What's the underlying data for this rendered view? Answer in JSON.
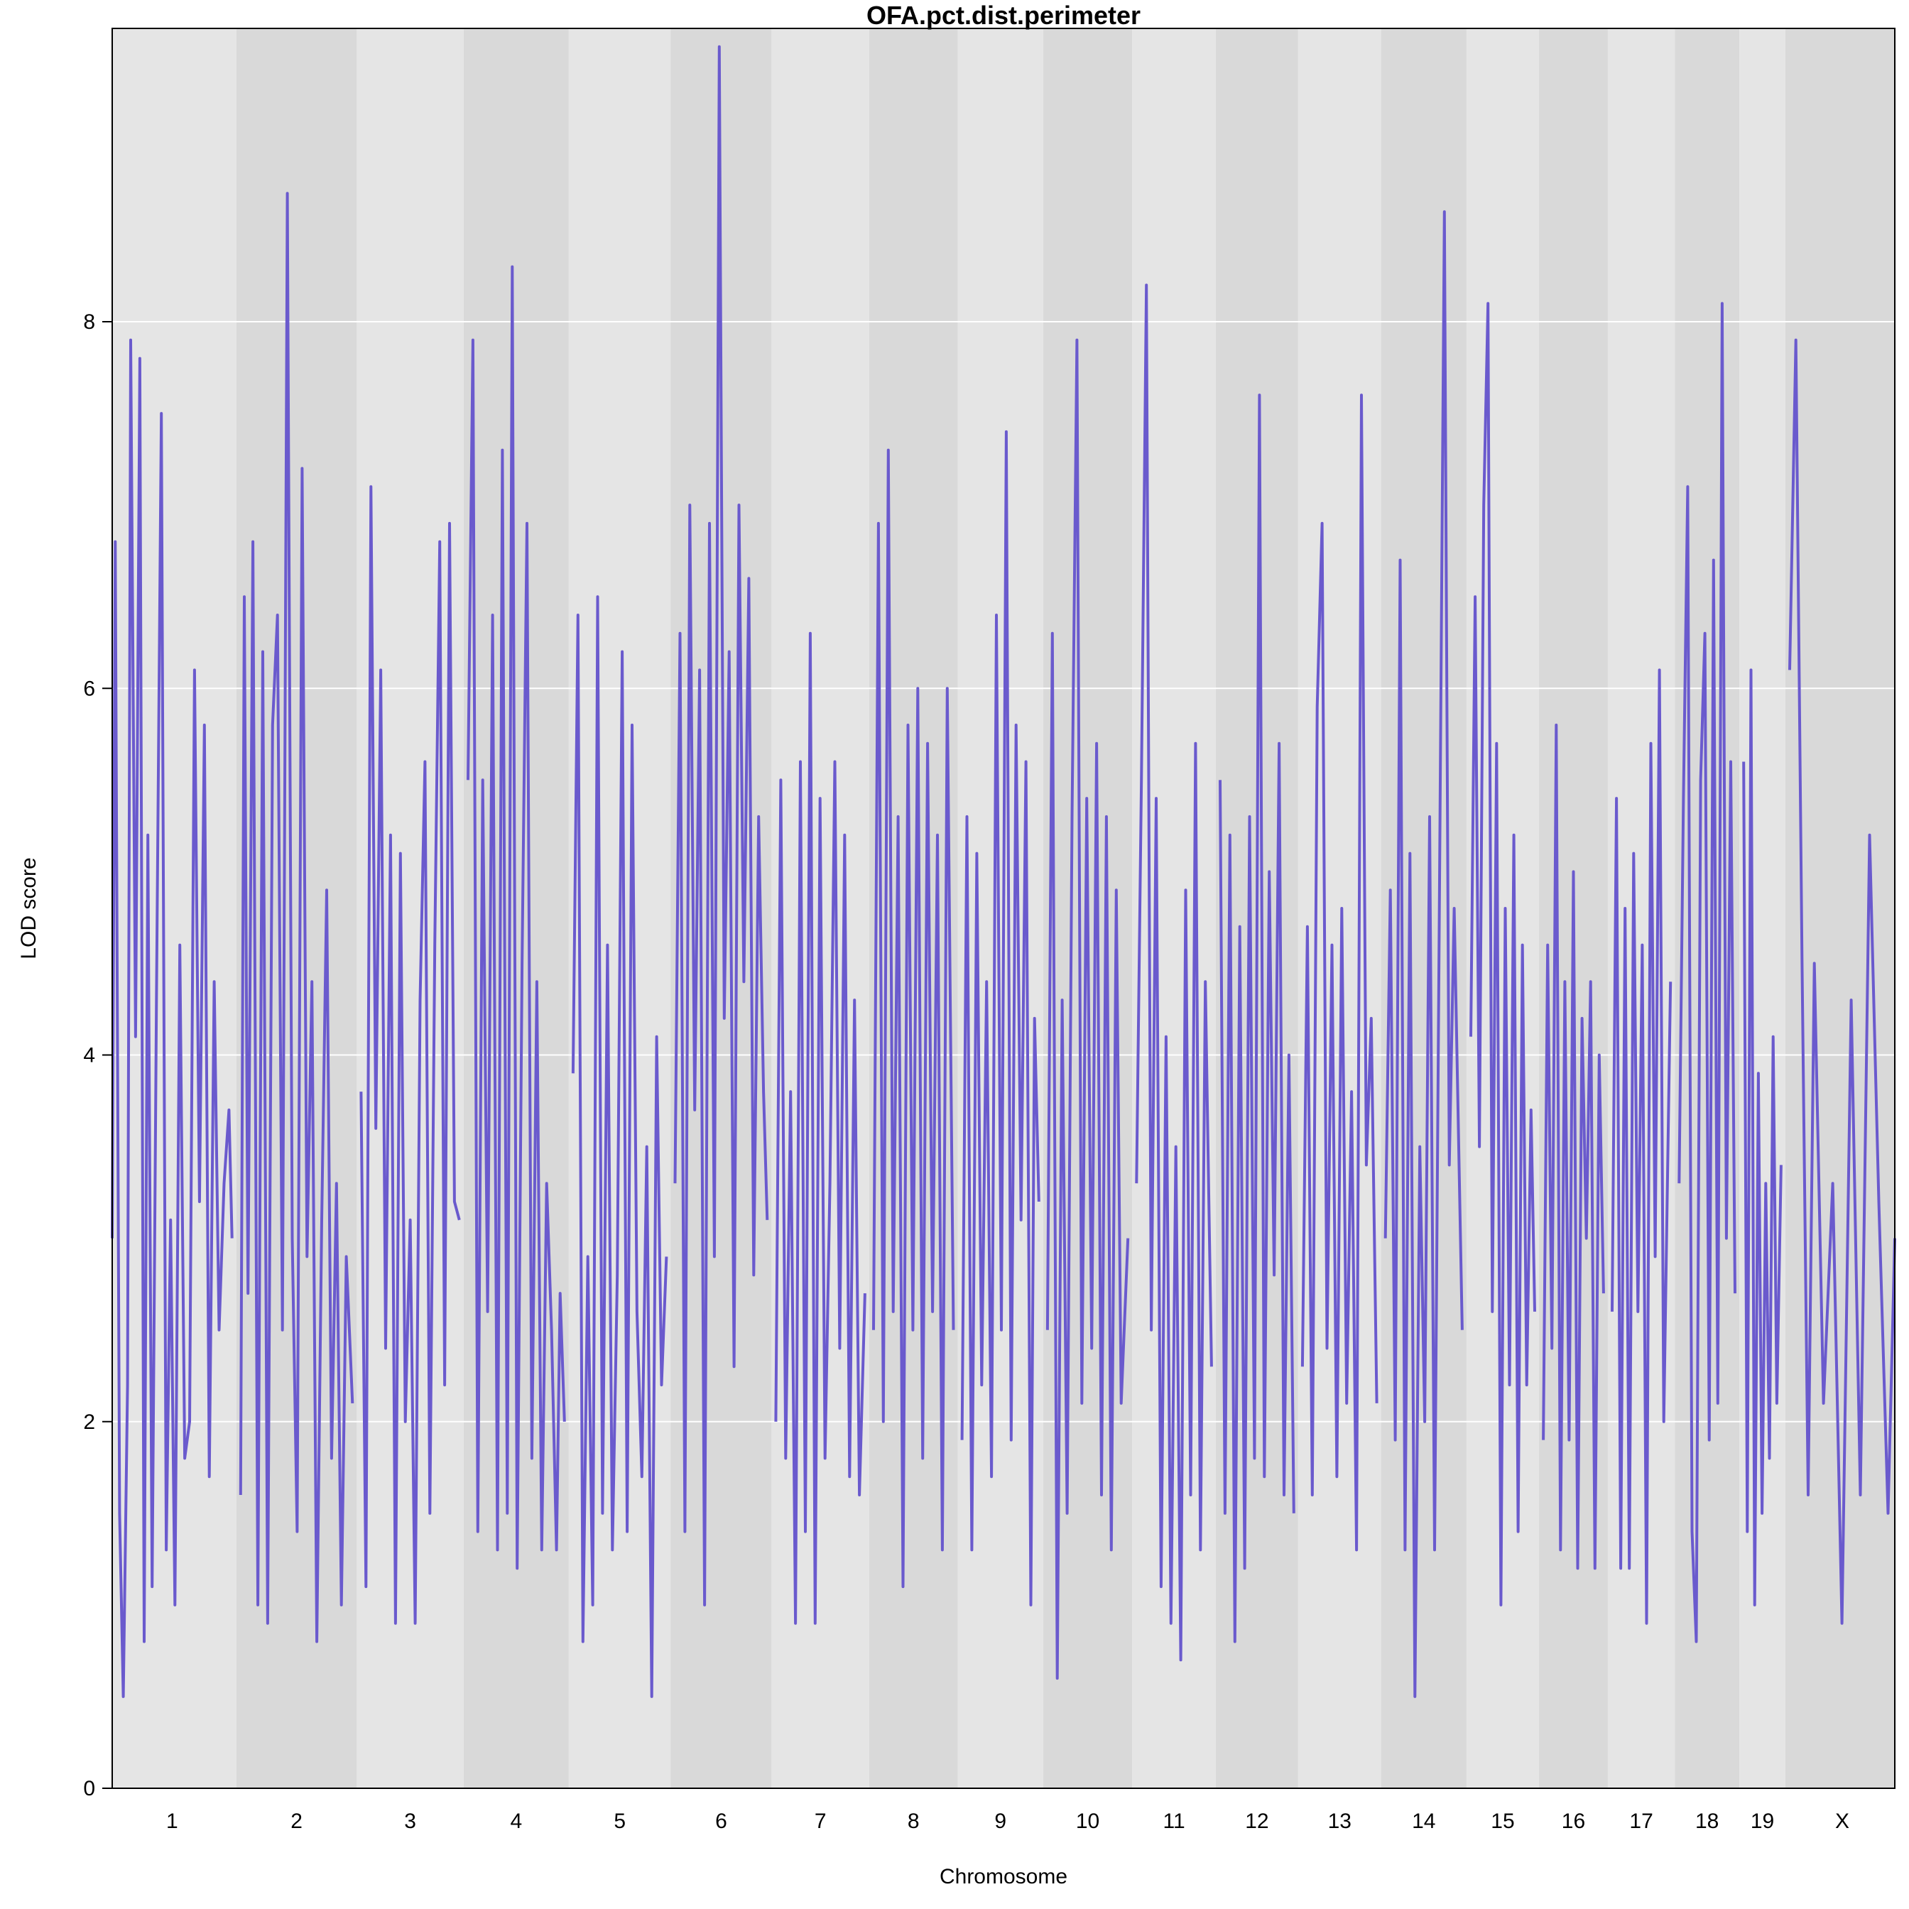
{
  "chart_data": {
    "type": "line",
    "title": "OFA.pct.dist.perimeter",
    "xlabel": "Chromosome",
    "ylabel": "LOD score",
    "ylim": [
      0,
      9.6
    ],
    "yticks": [
      0,
      2,
      4,
      6,
      8
    ],
    "grid": true,
    "line_color": "#6a5acd",
    "band_colors": [
      "#e5e5e5",
      "#d9d9d9"
    ],
    "chromosomes": [
      {
        "name": "1",
        "length": 195
      },
      {
        "name": "2",
        "length": 182
      },
      {
        "name": "3",
        "length": 160
      },
      {
        "name": "4",
        "length": 157
      },
      {
        "name": "5",
        "length": 152
      },
      {
        "name": "6",
        "length": 150
      },
      {
        "name": "7",
        "length": 145
      },
      {
        "name": "8",
        "length": 130
      },
      {
        "name": "9",
        "length": 125
      },
      {
        "name": "10",
        "length": 131
      },
      {
        "name": "11",
        "length": 122
      },
      {
        "name": "12",
        "length": 120
      },
      {
        "name": "13",
        "length": 121
      },
      {
        "name": "14",
        "length": 125
      },
      {
        "name": "15",
        "length": 104
      },
      {
        "name": "16",
        "length": 98
      },
      {
        "name": "17",
        "length": 95
      },
      {
        "name": "18",
        "length": 91
      },
      {
        "name": "19",
        "length": 61
      },
      {
        "name": "X",
        "length": 171
      }
    ],
    "series": [
      {
        "profiles": [
          {
            "chr": "1",
            "pos": [
              0,
              5,
              12,
              18,
              25,
              30,
              38,
              45,
              52,
              58,
              65,
              72,
              80,
              88,
              95,
              102,
              110,
              118,
              126,
              134,
              142,
              150,
              158,
              166,
              174,
              182,
              190,
              195
            ],
            "lod": [
              3.0,
              6.8,
              1.5,
              0.5,
              2.2,
              7.9,
              4.1,
              7.8,
              0.8,
              5.2,
              1.1,
              4.3,
              7.5,
              1.3,
              3.1,
              1.0,
              4.6,
              1.8,
              2.0,
              6.1,
              3.2,
              5.8,
              1.7,
              4.4,
              2.5,
              3.3,
              3.7,
              3.0
            ]
          },
          {
            "chr": "2",
            "pos": [
              0,
              6,
              12,
              20,
              28,
              36,
              44,
              52,
              60,
              68,
              76,
              84,
              92,
              100,
              108,
              116,
              124,
              132,
              140,
              148,
              156,
              164,
              172,
              182
            ],
            "lod": [
              1.6,
              6.5,
              2.7,
              6.8,
              1.0,
              6.2,
              0.9,
              5.8,
              6.4,
              2.5,
              8.7,
              3.0,
              1.4,
              7.2,
              2.9,
              4.4,
              0.8,
              3.1,
              4.9,
              1.8,
              3.3,
              1.0,
              2.9,
              2.1
            ]
          },
          {
            "chr": "3",
            "pos": [
              0,
              8,
              16,
              24,
              32,
              40,
              48,
              56,
              64,
              72,
              80,
              88,
              96,
              104,
              112,
              120,
              128,
              136,
              144,
              152,
              160
            ],
            "lod": [
              3.8,
              1.1,
              7.1,
              3.6,
              6.1,
              2.4,
              5.2,
              0.9,
              5.1,
              2.0,
              3.1,
              0.9,
              4.3,
              5.6,
              1.5,
              4.6,
              6.8,
              2.2,
              6.9,
              3.2,
              3.1
            ]
          },
          {
            "chr": "4",
            "pos": [
              0,
              8,
              16,
              24,
              32,
              40,
              48,
              56,
              64,
              72,
              80,
              88,
              96,
              104,
              112,
              120,
              128,
              136,
              144,
              150,
              157
            ],
            "lod": [
              5.5,
              7.9,
              1.4,
              5.5,
              2.6,
              6.4,
              1.3,
              7.3,
              1.5,
              8.3,
              1.2,
              4.5,
              6.9,
              1.8,
              4.4,
              1.3,
              3.3,
              2.5,
              1.3,
              2.7,
              2.0
            ]
          },
          {
            "chr": "5",
            "pos": [
              0,
              8,
              16,
              24,
              32,
              40,
              48,
              56,
              64,
              72,
              80,
              88,
              96,
              104,
              112,
              120,
              128,
              136,
              144,
              152
            ],
            "lod": [
              3.9,
              6.4,
              0.8,
              2.9,
              1.0,
              6.5,
              1.5,
              4.6,
              1.3,
              2.8,
              6.2,
              1.4,
              5.8,
              2.6,
              1.7,
              3.5,
              0.5,
              4.1,
              2.2,
              2.9
            ]
          },
          {
            "chr": "6",
            "pos": [
              0,
              8,
              16,
              24,
              32,
              40,
              48,
              56,
              64,
              72,
              80,
              88,
              96,
              104,
              112,
              120,
              128,
              136,
              144,
              150
            ],
            "lod": [
              3.3,
              6.3,
              1.4,
              7.0,
              3.7,
              6.1,
              1.0,
              6.9,
              2.9,
              9.5,
              4.2,
              6.2,
              2.3,
              7.0,
              4.4,
              6.6,
              2.8,
              5.3,
              3.8,
              3.1
            ]
          },
          {
            "chr": "7",
            "pos": [
              0,
              8,
              16,
              24,
              32,
              40,
              48,
              56,
              64,
              72,
              80,
              88,
              96,
              104,
              112,
              120,
              128,
              136,
              145
            ],
            "lod": [
              2.0,
              5.5,
              1.8,
              3.8,
              0.9,
              5.6,
              1.4,
              6.3,
              0.9,
              5.4,
              1.8,
              3.3,
              5.6,
              2.4,
              5.2,
              1.7,
              4.3,
              1.6,
              2.7
            ]
          },
          {
            "chr": "8",
            "pos": [
              0,
              8,
              16,
              24,
              32,
              40,
              48,
              56,
              64,
              72,
              80,
              88,
              96,
              104,
              112,
              120,
              130
            ],
            "lod": [
              2.5,
              6.9,
              2.0,
              7.3,
              2.6,
              5.3,
              1.1,
              5.8,
              2.5,
              6.0,
              1.8,
              5.7,
              2.6,
              5.2,
              1.3,
              6.0,
              2.5
            ]
          },
          {
            "chr": "9",
            "pos": [
              0,
              8,
              16,
              24,
              32,
              40,
              48,
              56,
              64,
              72,
              80,
              88,
              96,
              104,
              112,
              118,
              125
            ],
            "lod": [
              1.9,
              5.3,
              1.3,
              5.1,
              2.2,
              4.4,
              1.7,
              6.4,
              2.5,
              7.4,
              1.9,
              5.8,
              3.1,
              5.6,
              1.0,
              4.2,
              3.2
            ]
          },
          {
            "chr": "10",
            "pos": [
              0,
              8,
              16,
              24,
              32,
              40,
              48,
              56,
              64,
              72,
              80,
              88,
              96,
              104,
              112,
              120,
              131
            ],
            "lod": [
              2.5,
              6.3,
              0.6,
              4.3,
              1.5,
              5.3,
              7.9,
              2.1,
              5.4,
              2.4,
              5.7,
              1.6,
              5.3,
              1.3,
              4.9,
              2.1,
              3.0
            ]
          },
          {
            "chr": "11",
            "pos": [
              0,
              8,
              16,
              24,
              32,
              40,
              48,
              56,
              64,
              72,
              80,
              88,
              96,
              104,
              112,
              122
            ],
            "lod": [
              3.3,
              5.5,
              8.2,
              2.5,
              5.4,
              1.1,
              4.1,
              0.9,
              3.5,
              0.7,
              4.9,
              1.6,
              5.7,
              1.3,
              4.4,
              2.3
            ]
          },
          {
            "chr": "12",
            "pos": [
              0,
              8,
              16,
              24,
              32,
              40,
              48,
              56,
              64,
              72,
              80,
              88,
              96,
              104,
              112,
              120
            ],
            "lod": [
              5.5,
              1.5,
              5.2,
              0.8,
              4.7,
              1.2,
              5.3,
              1.8,
              7.6,
              1.7,
              5.0,
              2.8,
              5.7,
              1.6,
              4.0,
              1.5
            ]
          },
          {
            "chr": "13",
            "pos": [
              0,
              8,
              16,
              24,
              32,
              40,
              48,
              56,
              64,
              72,
              80,
              88,
              96,
              104,
              112,
              121
            ],
            "lod": [
              2.3,
              4.7,
              1.6,
              5.9,
              6.9,
              2.4,
              4.6,
              1.7,
              4.8,
              2.1,
              3.8,
              1.3,
              7.6,
              3.4,
              4.2,
              2.1
            ]
          },
          {
            "chr": "14",
            "pos": [
              0,
              8,
              16,
              24,
              32,
              40,
              48,
              56,
              64,
              72,
              80,
              88,
              96,
              104,
              112,
              125
            ],
            "lod": [
              3.0,
              4.9,
              1.9,
              6.7,
              1.3,
              5.1,
              0.5,
              3.5,
              2.0,
              5.3,
              1.3,
              4.9,
              8.6,
              3.4,
              4.8,
              2.5
            ]
          },
          {
            "chr": "15",
            "pos": [
              0,
              7,
              14,
              21,
              28,
              35,
              42,
              49,
              56,
              63,
              70,
              77,
              84,
              91,
              98,
              104
            ],
            "lod": [
              4.1,
              6.5,
              3.5,
              7.0,
              8.1,
              2.6,
              5.7,
              1.0,
              4.8,
              2.2,
              5.2,
              1.4,
              4.6,
              2.2,
              3.7,
              2.6
            ]
          },
          {
            "chr": "16",
            "pos": [
              0,
              7,
              14,
              21,
              28,
              35,
              42,
              49,
              56,
              63,
              70,
              77,
              84,
              91,
              98
            ],
            "lod": [
              1.9,
              4.6,
              2.4,
              5.8,
              1.3,
              4.4,
              1.9,
              5.0,
              1.2,
              4.2,
              3.0,
              4.4,
              1.2,
              4.0,
              2.7
            ]
          },
          {
            "chr": "17",
            "pos": [
              0,
              7,
              14,
              21,
              28,
              35,
              42,
              49,
              56,
              63,
              70,
              77,
              84,
              95
            ],
            "lod": [
              2.6,
              5.4,
              1.2,
              4.8,
              1.2,
              5.1,
              2.6,
              4.6,
              0.9,
              5.7,
              2.9,
              6.1,
              2.0,
              4.4
            ]
          },
          {
            "chr": "18",
            "pos": [
              0,
              7,
              14,
              21,
              28,
              35,
              42,
              49,
              56,
              63,
              70,
              77,
              84,
              91
            ],
            "lod": [
              3.3,
              5.4,
              7.1,
              1.4,
              0.8,
              5.5,
              6.3,
              1.9,
              6.7,
              2.1,
              8.1,
              3.0,
              5.6,
              2.7
            ]
          },
          {
            "chr": "19",
            "pos": [
              0,
              6,
              12,
              18,
              24,
              30,
              36,
              42,
              48,
              54,
              61
            ],
            "lod": [
              5.6,
              1.4,
              6.1,
              1.0,
              3.9,
              1.5,
              3.3,
              1.8,
              4.1,
              2.1,
              3.4
            ]
          },
          {
            "chr": "X",
            "pos": [
              0,
              10,
              20,
              30,
              40,
              55,
              70,
              85,
              100,
              115,
              130,
              145,
              160,
              171
            ],
            "lod": [
              6.1,
              7.9,
              4.5,
              1.6,
              4.5,
              2.1,
              3.3,
              0.9,
              4.3,
              1.6,
              5.2,
              3.2,
              1.5,
              3.0
            ]
          }
        ]
      }
    ]
  }
}
